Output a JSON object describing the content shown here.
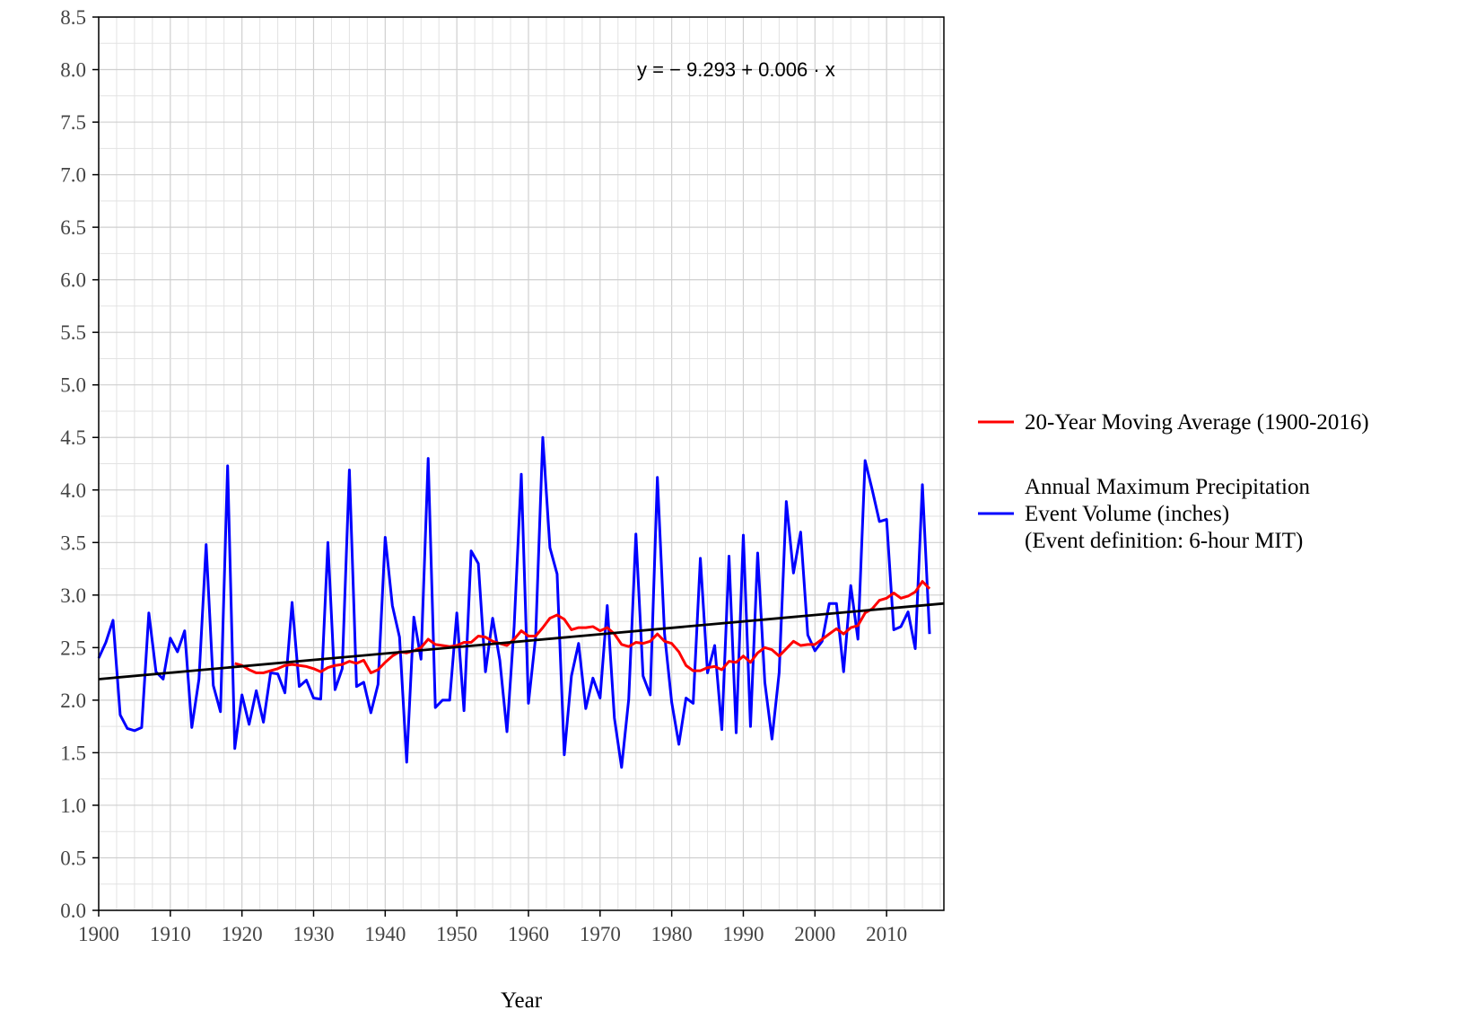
{
  "chart_data": {
    "type": "line",
    "title": "",
    "xlabel": "Year",
    "ylabel": "",
    "xlim": [
      1900,
      2018
    ],
    "ylim": [
      0,
      8.5
    ],
    "xticks": [
      1900,
      1910,
      1920,
      1930,
      1940,
      1950,
      1960,
      1970,
      1980,
      1990,
      2000,
      2010
    ],
    "xtick_labels": [
      "1900",
      "1910",
      "1920",
      "1930",
      "1940",
      "1950",
      "1960",
      "1970",
      "1980",
      "1990",
      "2000",
      "2010"
    ],
    "yticks": [
      0,
      0.5,
      1,
      1.5,
      2,
      2.5,
      3,
      3.5,
      4,
      4.5,
      5,
      5.5,
      6,
      6.5,
      7,
      7.5,
      8,
      8.5
    ],
    "ytick_labels": [
      "0.0",
      "0.5",
      "1.0",
      "1.5",
      "2.0",
      "2.5",
      "3.0",
      "3.5",
      "4.0",
      "4.5",
      "5.0",
      "5.5",
      "6.0",
      "6.5",
      "7.0",
      "7.5",
      "8.0",
      "8.5"
    ],
    "grid": true,
    "legend_position": "right",
    "equation": "y = − 9.293 + 0.006 · x",
    "series": [
      {
        "name": "Annual Maximum Precipitation Event Volume (inches) (Event definition: 6-hour MIT)",
        "legend_lines": [
          "Annual Maximum Precipitation",
          "Event Volume (inches)",
          "(Event definition: 6-hour MIT)"
        ],
        "color": "#0000ff",
        "x": [
          1900,
          1901,
          1902,
          1903,
          1904,
          1905,
          1906,
          1907,
          1908,
          1909,
          1910,
          1911,
          1912,
          1913,
          1914,
          1915,
          1916,
          1917,
          1918,
          1919,
          1920,
          1921,
          1922,
          1923,
          1924,
          1925,
          1926,
          1927,
          1928,
          1929,
          1930,
          1931,
          1932,
          1933,
          1934,
          1935,
          1936,
          1937,
          1938,
          1939,
          1940,
          1941,
          1942,
          1943,
          1944,
          1945,
          1946,
          1947,
          1948,
          1949,
          1950,
          1951,
          1952,
          1953,
          1954,
          1955,
          1956,
          1957,
          1958,
          1959,
          1960,
          1961,
          1962,
          1963,
          1964,
          1965,
          1966,
          1967,
          1968,
          1969,
          1970,
          1971,
          1972,
          1973,
          1974,
          1975,
          1976,
          1977,
          1978,
          1979,
          1980,
          1981,
          1982,
          1983,
          1984,
          1985,
          1986,
          1987,
          1988,
          1989,
          1990,
          1991,
          1992,
          1993,
          1994,
          1995,
          1996,
          1997,
          1998,
          1999,
          2000,
          2001,
          2002,
          2003,
          2004,
          2005,
          2006,
          2007,
          2008,
          2009,
          2010,
          2011,
          2012,
          2013,
          2014,
          2015,
          2016
        ],
        "values": [
          2.4,
          2.55,
          2.76,
          1.86,
          1.73,
          1.71,
          1.74,
          2.83,
          2.27,
          2.2,
          2.59,
          2.46,
          2.66,
          1.74,
          2.2,
          3.48,
          2.14,
          1.89,
          4.23,
          1.54,
          2.05,
          1.77,
          2.09,
          1.79,
          2.26,
          2.25,
          2.07,
          2.93,
          2.13,
          2.19,
          2.02,
          2.01,
          3.5,
          2.1,
          2.3,
          4.19,
          2.13,
          2.17,
          1.88,
          2.15,
          3.55,
          2.9,
          2.6,
          1.41,
          2.79,
          2.39,
          4.3,
          1.93,
          2.0,
          2.0,
          2.83,
          1.9,
          3.42,
          3.3,
          2.27,
          2.78,
          2.38,
          1.7,
          2.7,
          4.15,
          1.97,
          2.6,
          4.5,
          3.45,
          3.2,
          1.48,
          2.23,
          2.54,
          1.92,
          2.21,
          2.02,
          2.9,
          1.83,
          1.36,
          2.01,
          3.58,
          2.23,
          2.05,
          4.12,
          2.63,
          1.98,
          1.58,
          2.02,
          1.97,
          3.35,
          2.26,
          2.52,
          1.72,
          3.37,
          1.69,
          3.57,
          1.75,
          3.4,
          2.17,
          1.63,
          2.26,
          3.89,
          3.21,
          3.6,
          2.62,
          2.47,
          2.56,
          2.92,
          2.92,
          2.27,
          3.09,
          2.58,
          4.28,
          4.0,
          3.7,
          3.72,
          2.67,
          2.7,
          2.84,
          2.49,
          4.05,
          2.63
        ]
      },
      {
        "name": "20-Year Moving Average (1900-2016)",
        "legend_lines": [
          "20-Year Moving Average (1900-2016)"
        ],
        "color": "#ff0000",
        "x": [
          1919,
          1920,
          1921,
          1922,
          1923,
          1924,
          1925,
          1926,
          1927,
          1928,
          1929,
          1930,
          1931,
          1932,
          1933,
          1934,
          1935,
          1936,
          1937,
          1938,
          1939,
          1940,
          1941,
          1942,
          1943,
          1944,
          1945,
          1946,
          1947,
          1948,
          1949,
          1950,
          1951,
          1952,
          1953,
          1954,
          1955,
          1956,
          1957,
          1958,
          1959,
          1960,
          1961,
          1962,
          1963,
          1964,
          1965,
          1966,
          1967,
          1968,
          1969,
          1970,
          1971,
          1972,
          1973,
          1974,
          1975,
          1976,
          1977,
          1978,
          1979,
          1980,
          1981,
          1982,
          1983,
          1984,
          1985,
          1986,
          1987,
          1988,
          1989,
          1990,
          1991,
          1992,
          1993,
          1994,
          1995,
          1996,
          1997,
          1998,
          1999,
          2000,
          2001,
          2002,
          2003,
          2004,
          2005,
          2006,
          2007,
          2008,
          2009,
          2010,
          2011,
          2012,
          2013,
          2014,
          2015,
          2016
        ],
        "values": [
          2.35,
          2.33,
          2.29,
          2.26,
          2.26,
          2.28,
          2.3,
          2.33,
          2.34,
          2.33,
          2.32,
          2.3,
          2.27,
          2.31,
          2.33,
          2.34,
          2.37,
          2.35,
          2.38,
          2.26,
          2.29,
          2.36,
          2.42,
          2.46,
          2.45,
          2.47,
          2.5,
          2.58,
          2.53,
          2.52,
          2.51,
          2.52,
          2.55,
          2.55,
          2.61,
          2.6,
          2.56,
          2.54,
          2.52,
          2.58,
          2.66,
          2.61,
          2.61,
          2.69,
          2.78,
          2.81,
          2.77,
          2.67,
          2.69,
          2.69,
          2.7,
          2.66,
          2.69,
          2.63,
          2.53,
          2.51,
          2.55,
          2.54,
          2.56,
          2.63,
          2.56,
          2.54,
          2.46,
          2.33,
          2.28,
          2.28,
          2.31,
          2.32,
          2.29,
          2.37,
          2.36,
          2.42,
          2.36,
          2.45,
          2.5,
          2.48,
          2.42,
          2.49,
          2.56,
          2.52,
          2.53,
          2.53,
          2.58,
          2.63,
          2.68,
          2.63,
          2.69,
          2.71,
          2.83,
          2.87,
          2.95,
          2.97,
          3.02,
          2.97,
          2.99,
          3.03,
          3.13,
          3.06
        ]
      },
      {
        "name": "Linear trend",
        "color": "#000000",
        "intercept": -9.293,
        "slope": 0.006,
        "x": [
          1900,
          2018
        ],
        "values": [
          2.2,
          2.92
        ]
      }
    ]
  }
}
